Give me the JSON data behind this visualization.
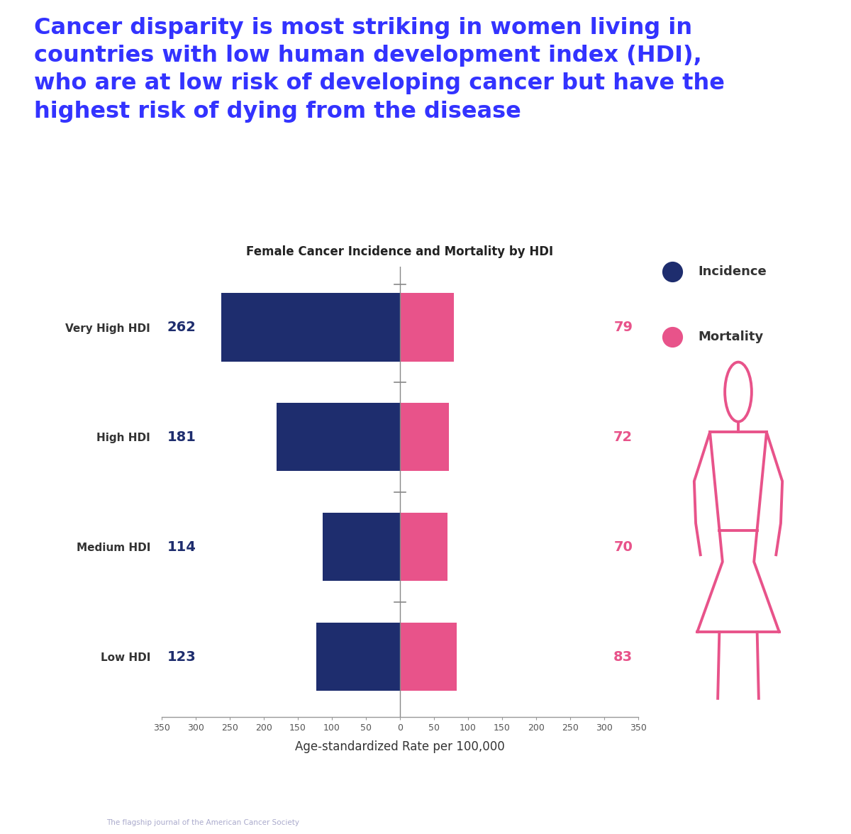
{
  "title": "Cancer disparity is most striking in women living in\ncountries with low human development index (HDI),\nwho are at low risk of developing cancer but have the\nhighest risk of dying from the disease",
  "subtitle": "Female Cancer Incidence and Mortality by HDI",
  "categories": [
    "Very High HDI",
    "High HDI",
    "Medium HDI",
    "Low HDI"
  ],
  "incidence": [
    262,
    181,
    114,
    123
  ],
  "mortality": [
    79,
    72,
    70,
    83
  ],
  "incidence_color": "#1e2d6e",
  "mortality_color": "#e8538a",
  "title_color": "#3333ff",
  "label_color_incidence": "#1e2d6e",
  "label_color_mortality": "#e8538a",
  "xlabel": "Age-standardized Rate per 100,000",
  "xlim": 350,
  "background_color": "#ffffff",
  "footer_bg": "#1a2870",
  "legend_incidence": "Incidence",
  "legend_mortality": "Mortality",
  "axis_color": "#888888"
}
